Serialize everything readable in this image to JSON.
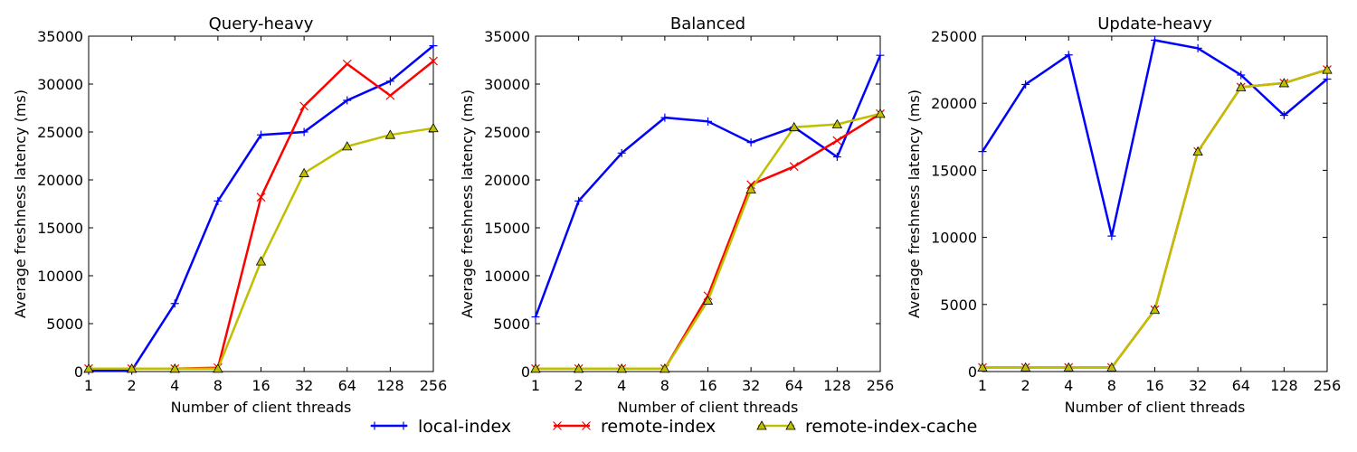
{
  "chart_data": [
    {
      "type": "line",
      "title": "Query-heavy",
      "xlabel": "Number of client threads",
      "ylabel": "Average freshness latency (ms)",
      "x": [
        1,
        2,
        4,
        8,
        16,
        32,
        64,
        128,
        256
      ],
      "x_scale": "log2",
      "ylim": [
        0,
        35000
      ],
      "yticks": [
        0,
        5000,
        10000,
        15000,
        20000,
        25000,
        30000,
        35000
      ],
      "grid": false,
      "series": [
        {
          "name": "local-index",
          "color": "#0000ff",
          "marker": "plus",
          "values": [
            100,
            100,
            7100,
            17800,
            24700,
            25000,
            28300,
            30300,
            34000
          ]
        },
        {
          "name": "remote-index",
          "color": "#ff0000",
          "marker": "x",
          "values": [
            300,
            300,
            300,
            400,
            18200,
            27700,
            32100,
            28800,
            32400
          ]
        },
        {
          "name": "remote-index-cache",
          "color": "#bfbf00",
          "marker": "triangle",
          "values": [
            300,
            300,
            300,
            300,
            11500,
            20700,
            23500,
            24700,
            25400
          ]
        }
      ]
    },
    {
      "type": "line",
      "title": "Balanced",
      "xlabel": "Number of client threads",
      "ylabel": "Average freshness latency (ms)",
      "x": [
        1,
        2,
        4,
        8,
        16,
        32,
        64,
        128,
        256
      ],
      "x_scale": "log2",
      "ylim": [
        0,
        35000
      ],
      "yticks": [
        0,
        5000,
        10000,
        15000,
        20000,
        25000,
        30000,
        35000
      ],
      "grid": false,
      "series": [
        {
          "name": "local-index",
          "color": "#0000ff",
          "marker": "plus",
          "values": [
            5700,
            17800,
            22800,
            26500,
            26100,
            23900,
            25500,
            22400,
            33000
          ]
        },
        {
          "name": "remote-index",
          "color": "#ff0000",
          "marker": "x",
          "values": [
            300,
            300,
            300,
            300,
            7900,
            19500,
            21400,
            24100,
            26900
          ]
        },
        {
          "name": "remote-index-cache",
          "color": "#bfbf00",
          "marker": "triangle",
          "values": [
            300,
            300,
            300,
            300,
            7400,
            19000,
            25500,
            25800,
            26900
          ]
        }
      ]
    },
    {
      "type": "line",
      "title": "Update-heavy",
      "xlabel": "Number of client threads",
      "ylabel": "Average freshness latency (ms)",
      "x": [
        1,
        2,
        4,
        8,
        16,
        32,
        64,
        128,
        256
      ],
      "x_scale": "log2",
      "ylim": [
        0,
        25000
      ],
      "yticks": [
        0,
        5000,
        10000,
        15000,
        20000,
        25000
      ],
      "grid": false,
      "series": [
        {
          "name": "local-index",
          "color": "#0000ff",
          "marker": "plus",
          "values": [
            16400,
            21400,
            23600,
            10100,
            24700,
            24100,
            22100,
            19100,
            21800
          ]
        },
        {
          "name": "remote-index",
          "color": "#ff0000",
          "marker": "x",
          "values": [
            300,
            300,
            300,
            300,
            4600,
            16400,
            21200,
            21500,
            22500
          ]
        },
        {
          "name": "remote-index-cache",
          "color": "#bfbf00",
          "marker": "triangle",
          "values": [
            300,
            300,
            300,
            300,
            4600,
            16400,
            21200,
            21500,
            22500
          ]
        }
      ]
    }
  ],
  "legend": {
    "placement": "bottom-center",
    "items": [
      {
        "label": "local-index",
        "color": "#0000ff",
        "marker": "plus"
      },
      {
        "label": "remote-index",
        "color": "#ff0000",
        "marker": "x"
      },
      {
        "label": "remote-index-cache",
        "color": "#bfbf00",
        "marker": "triangle"
      }
    ]
  }
}
